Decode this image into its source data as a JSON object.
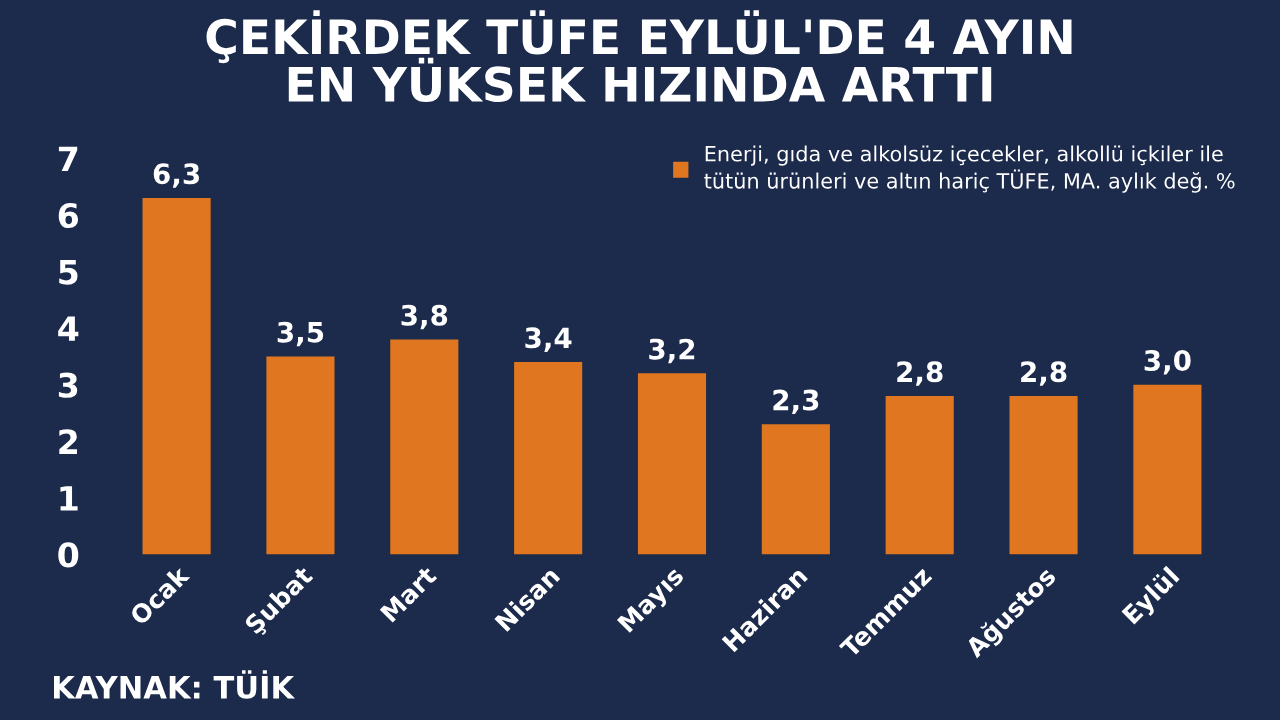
{
  "chart_data": {
    "type": "bar",
    "title": "ÇEKİRDEK TÜFE EYLÜL'DE 4 AYIN\nEN YÜKSEK HIZINDA ARTTI",
    "categories": [
      "Ocak",
      "Şubat",
      "Mart",
      "Nisan",
      "Mayıs",
      "Haziran",
      "Temmuz",
      "Ağustos",
      "Eylül"
    ],
    "series": [
      {
        "name": "Enerji, gıda ve alkolsüz içecekler, alkollü içkiler ile\ntütün ürünleri ve altın hariç TÜFE, MA. aylık değ. %",
        "color": "#e0761f",
        "values": [
          6.3,
          3.5,
          3.8,
          3.4,
          3.2,
          2.3,
          2.8,
          2.8,
          3.0
        ],
        "value_labels": [
          "6,3",
          "3,5",
          "3,8",
          "3,4",
          "3,2",
          "2,3",
          "2,8",
          "2,8",
          "3,0"
        ]
      }
    ],
    "ylim": [
      0,
      7
    ],
    "yticks": [
      0,
      1,
      2,
      3,
      4,
      5,
      6,
      7
    ],
    "grid": false,
    "legend": "top right",
    "annotations": [
      "KAYNAK: TÜİK"
    ]
  }
}
